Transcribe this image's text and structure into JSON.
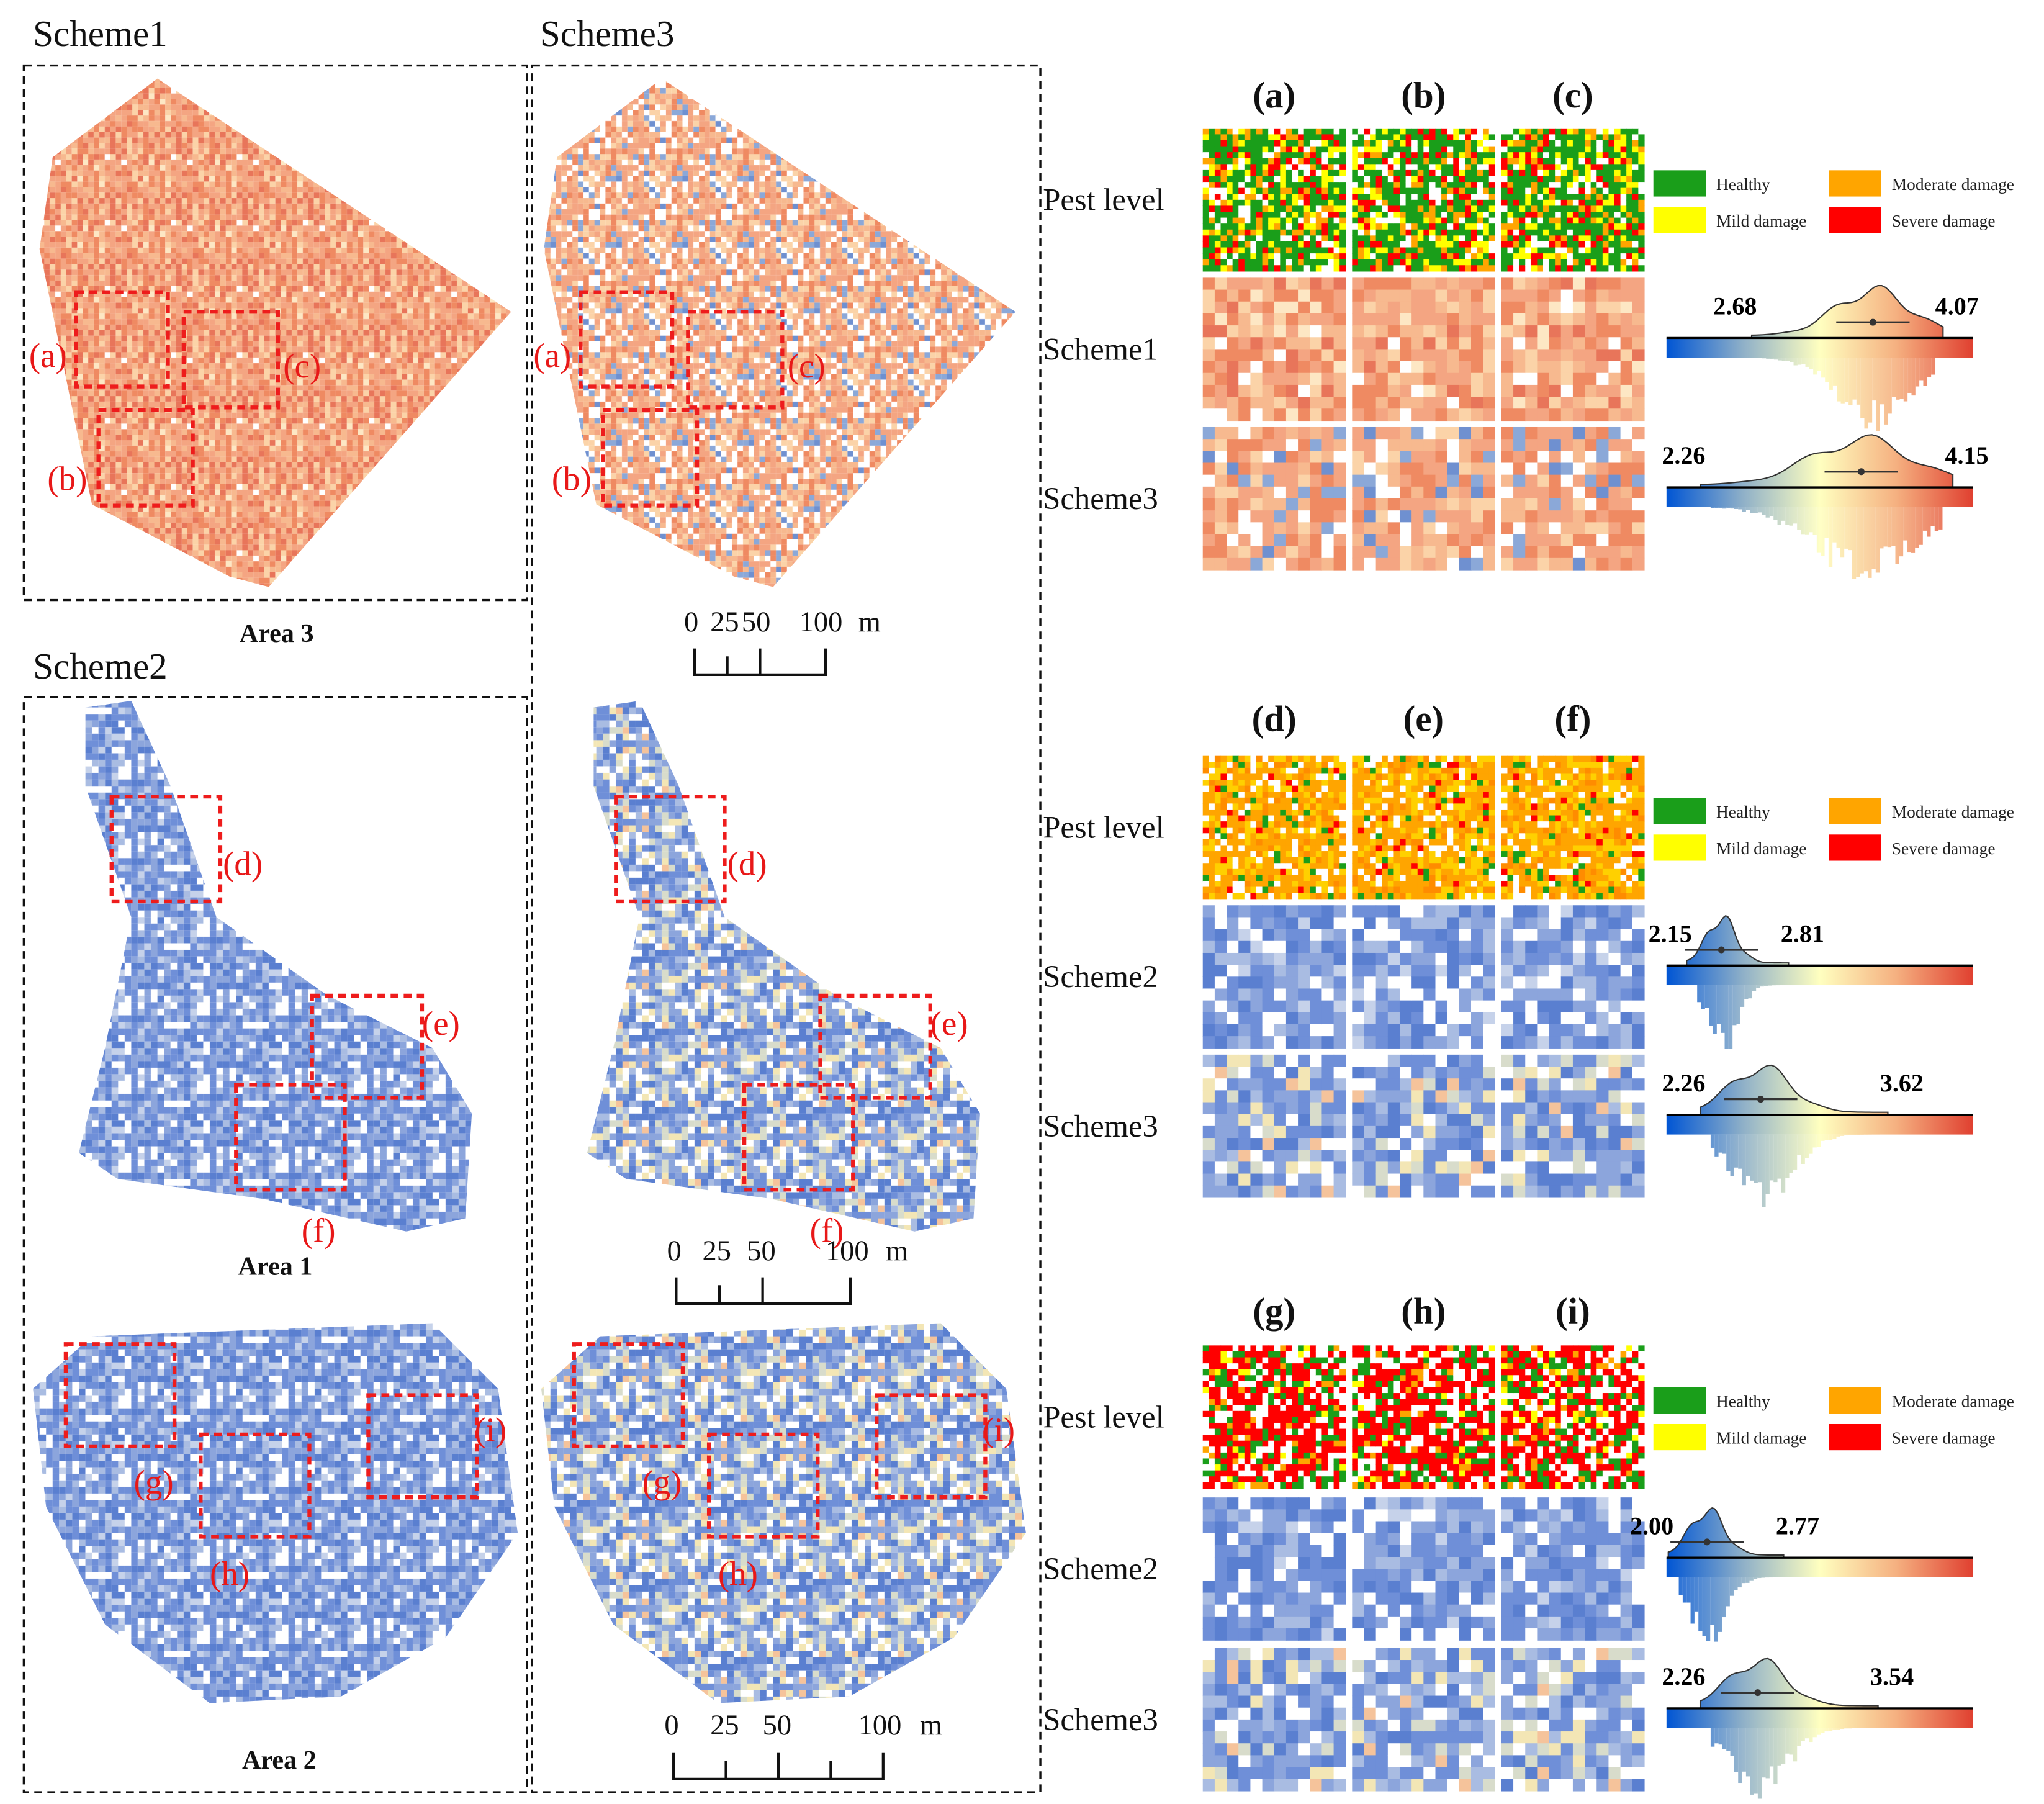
{
  "panel_titles": {
    "scheme1": "Scheme1",
    "scheme3": "Scheme3",
    "scheme2": "Scheme2"
  },
  "area_labels": {
    "area3": "Area 3",
    "area1": "Area 1",
    "area2": "Area 2"
  },
  "scale_bars": {
    "area3": {
      "labels": [
        "0",
        "25",
        "50",
        "100",
        "m"
      ]
    },
    "area1": {
      "labels": [
        "0",
        "25",
        "50",
        "100",
        "m"
      ]
    },
    "area2": {
      "labels": [
        "0",
        "25",
        "50",
        "100",
        "m"
      ]
    }
  },
  "box_labels": [
    "(a)",
    "(b)",
    "(c)",
    "(d)",
    "(e)",
    "(f)",
    "(g)",
    "(h)",
    "(i)"
  ],
  "groups": [
    {
      "columns": [
        "(a)",
        "(b)",
        "(c)"
      ],
      "rows": [
        "Pest level",
        "Scheme1",
        "Scheme3"
      ],
      "ridges": [
        {
          "min": "2.68",
          "max": "4.07"
        },
        {
          "min": "2.26",
          "max": "4.15"
        }
      ]
    },
    {
      "columns": [
        "(d)",
        "(e)",
        "(f)"
      ],
      "rows": [
        "Pest level",
        "Scheme2",
        "Scheme3"
      ],
      "ridges": [
        {
          "min": "2.15",
          "max": "2.81"
        },
        {
          "min": "2.26",
          "max": "3.62"
        }
      ]
    },
    {
      "columns": [
        "(g)",
        "(h)",
        "(i)"
      ],
      "rows": [
        "Pest level",
        "Scheme2",
        "Scheme3"
      ],
      "ridges": [
        {
          "min": "2.00",
          "max": "2.77"
        },
        {
          "min": "2.26",
          "max": "3.54"
        }
      ]
    }
  ],
  "legend": {
    "items": [
      {
        "label": "Healthy",
        "color": "#1a9e1a"
      },
      {
        "label": "Moderate damage",
        "color": "#ffa500"
      },
      {
        "label": "Mild damage",
        "color": "#ffff00"
      },
      {
        "label": "Severe damage",
        "color": "#ff0000"
      }
    ]
  },
  "colormap": [
    "#0055d4",
    "#8fb0c8",
    "#ffffc0",
    "#f5b080",
    "#e04030"
  ]
}
